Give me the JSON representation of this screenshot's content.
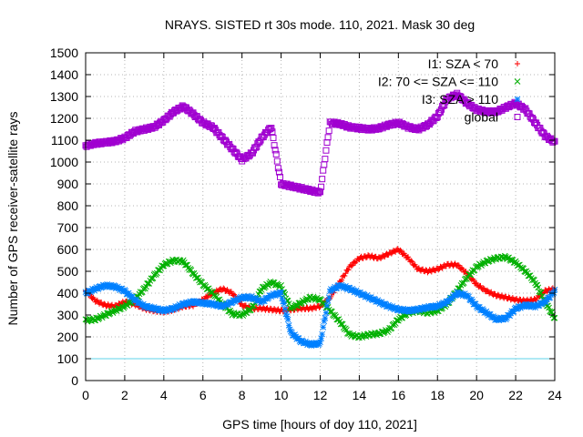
{
  "chart_data": {
    "type": "scatter",
    "title": "NRAYS. SISTED rt 30s mode. 110, 2021. Mask 30 deg",
    "xlabel": "GPS time [hours of doy 110, 2021]",
    "ylabel": "Number of GPS receiver-satellite rays",
    "xlim": [
      0,
      24
    ],
    "ylim": [
      0,
      1500
    ],
    "xticks": [
      0,
      2,
      4,
      6,
      8,
      10,
      12,
      14,
      16,
      18,
      20,
      22,
      24
    ],
    "yticks": [
      0,
      100,
      200,
      300,
      400,
      500,
      600,
      700,
      800,
      900,
      1000,
      1100,
      1200,
      1300,
      1400,
      1500
    ],
    "grid": true,
    "legend_position": "top-right",
    "reference_line": {
      "y": 100,
      "color": "#5fd3e8"
    },
    "series": [
      {
        "name": "I1: SZA < 70",
        "color": "#ff0000",
        "marker": "plus",
        "x": [
          0,
          0.5,
          1,
          1.5,
          2,
          2.5,
          3,
          3.5,
          4,
          4.5,
          5,
          5.5,
          6,
          6.5,
          7,
          7.5,
          8,
          8.5,
          9,
          9.5,
          10,
          10.5,
          11,
          11.5,
          12,
          12.5,
          13,
          13.5,
          14,
          14.5,
          15,
          15.5,
          16,
          16.5,
          17,
          17.5,
          18,
          18.5,
          19,
          19.5,
          20,
          20.5,
          21,
          21.5,
          22,
          22.5,
          23,
          23.5,
          24
        ],
        "values": [
          410,
          365,
          345,
          340,
          360,
          350,
          330,
          320,
          315,
          325,
          340,
          345,
          370,
          400,
          420,
          400,
          345,
          330,
          330,
          325,
          320,
          325,
          330,
          330,
          340,
          380,
          450,
          520,
          560,
          570,
          560,
          580,
          600,
          560,
          510,
          500,
          510,
          530,
          530,
          490,
          440,
          410,
          390,
          380,
          370,
          365,
          370,
          410,
          420
        ]
      },
      {
        "name": "I2: 70 <= SZA <= 110",
        "color": "#00b000",
        "marker": "cross",
        "x": [
          0,
          0.5,
          1,
          1.5,
          2,
          2.5,
          3,
          3.5,
          4,
          4.5,
          5,
          5.5,
          6,
          6.5,
          7,
          7.5,
          8,
          8.5,
          9,
          9.5,
          10,
          10.5,
          11,
          11.5,
          12,
          12.5,
          13,
          13.5,
          14,
          14.5,
          15,
          15.5,
          16,
          16.5,
          17,
          17.5,
          18,
          18.5,
          19,
          19.5,
          20,
          20.5,
          21,
          21.5,
          22,
          22.5,
          23,
          23.5,
          24
        ],
        "values": [
          275,
          280,
          300,
          320,
          340,
          370,
          420,
          480,
          530,
          550,
          545,
          490,
          440,
          400,
          350,
          305,
          300,
          330,
          420,
          450,
          430,
          330,
          355,
          380,
          370,
          320,
          270,
          210,
          200,
          210,
          215,
          230,
          280,
          310,
          320,
          310,
          320,
          350,
          410,
          470,
          520,
          545,
          560,
          565,
          540,
          500,
          450,
          360,
          285
        ]
      },
      {
        "name": "I3: SZA > 110",
        "color": "#0080ff",
        "marker": "star",
        "x": [
          0,
          0.5,
          1,
          1.5,
          2,
          2.5,
          3,
          3.5,
          4,
          4.5,
          5,
          5.5,
          6,
          6.5,
          7,
          7.5,
          8,
          8.5,
          9,
          9.5,
          10,
          10.5,
          11,
          11.5,
          12,
          12.5,
          13,
          13.5,
          14,
          14.5,
          15,
          15.5,
          16,
          16.5,
          17,
          17.5,
          18,
          18.5,
          19,
          19.5,
          20,
          20.5,
          21,
          21.5,
          22,
          22.5,
          23,
          23.5,
          24
        ],
        "values": [
          400,
          420,
          435,
          430,
          410,
          370,
          340,
          330,
          320,
          330,
          350,
          360,
          355,
          350,
          340,
          360,
          380,
          380,
          360,
          390,
          400,
          220,
          180,
          165,
          170,
          410,
          435,
          420,
          400,
          380,
          360,
          340,
          325,
          320,
          325,
          335,
          340,
          360,
          400,
          390,
          340,
          310,
          280,
          285,
          330,
          345,
          340,
          360,
          410
        ]
      },
      {
        "name": "global",
        "color": "#a000d0",
        "marker": "square",
        "x": [
          0,
          0.5,
          1,
          1.5,
          2,
          2.5,
          3,
          3.5,
          4,
          4.5,
          5,
          5.5,
          6,
          6.5,
          7,
          7.5,
          8,
          8.5,
          9,
          9.5,
          10,
          10.5,
          11,
          11.5,
          12,
          12.5,
          13,
          13.5,
          14,
          14.5,
          15,
          15.5,
          16,
          16.5,
          17,
          17.5,
          18,
          18.5,
          19,
          19.5,
          20,
          20.5,
          21,
          21.5,
          22,
          22.5,
          23,
          23.5,
          24
        ],
        "values": [
          1075,
          1085,
          1090,
          1095,
          1110,
          1140,
          1150,
          1160,
          1190,
          1230,
          1255,
          1220,
          1180,
          1160,
          1110,
          1060,
          1010,
          1040,
          1110,
          1160,
          900,
          890,
          880,
          870,
          860,
          1180,
          1175,
          1160,
          1155,
          1150,
          1155,
          1170,
          1180,
          1160,
          1150,
          1170,
          1210,
          1290,
          1310,
          1270,
          1240,
          1230,
          1230,
          1250,
          1270,
          1240,
          1180,
          1120,
          1090
        ]
      }
    ]
  }
}
